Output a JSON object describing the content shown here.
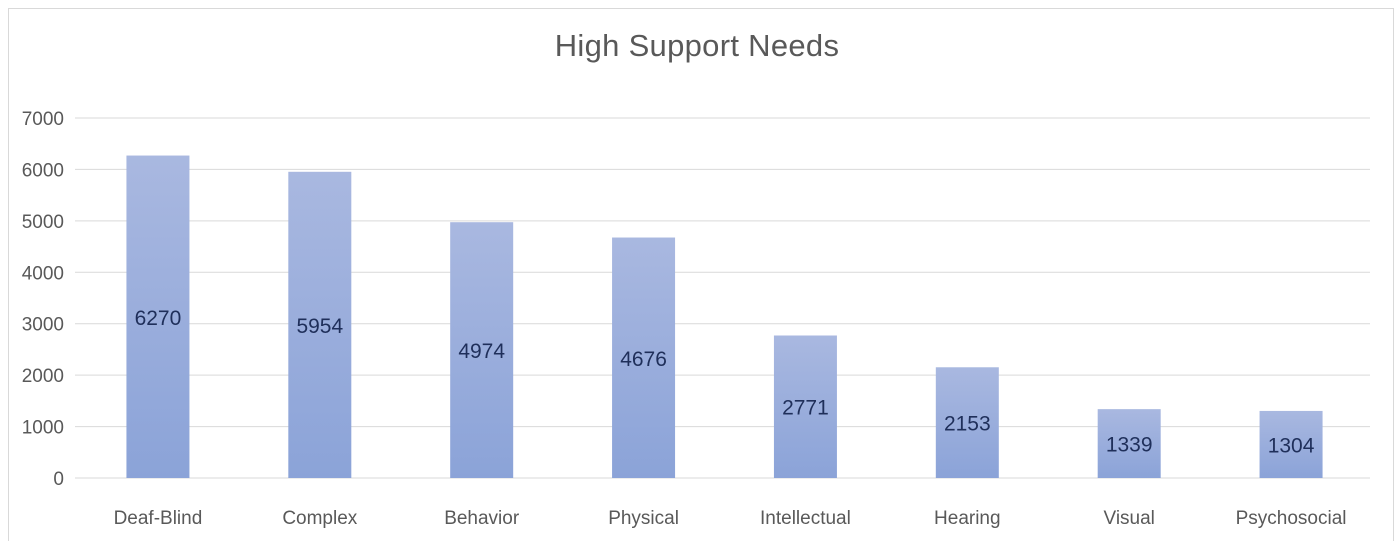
{
  "chart_data": {
    "type": "bar",
    "title": "High Support Needs",
    "categories": [
      "Deaf-Blind",
      "Complex",
      "Behavior",
      "Physical",
      "Intellectual",
      "Hearing",
      "Visual",
      "Psychosocial"
    ],
    "values": [
      6270,
      5954,
      4974,
      4676,
      2771,
      2153,
      1339,
      1304
    ],
    "xlabel": "",
    "ylabel": "",
    "ylim": [
      0,
      7000
    ],
    "yticks": [
      "0",
      "1000",
      "2000",
      "3000",
      "4000",
      "5000",
      "6000",
      "7000"
    ],
    "grid": true,
    "legend": "none",
    "data_labels": true,
    "bar_color_top": "#a9b8e0",
    "bar_color_bottom": "#8ba3d8",
    "label_color": "#1f2f5a",
    "grid_color": "#d9d9d9"
  }
}
